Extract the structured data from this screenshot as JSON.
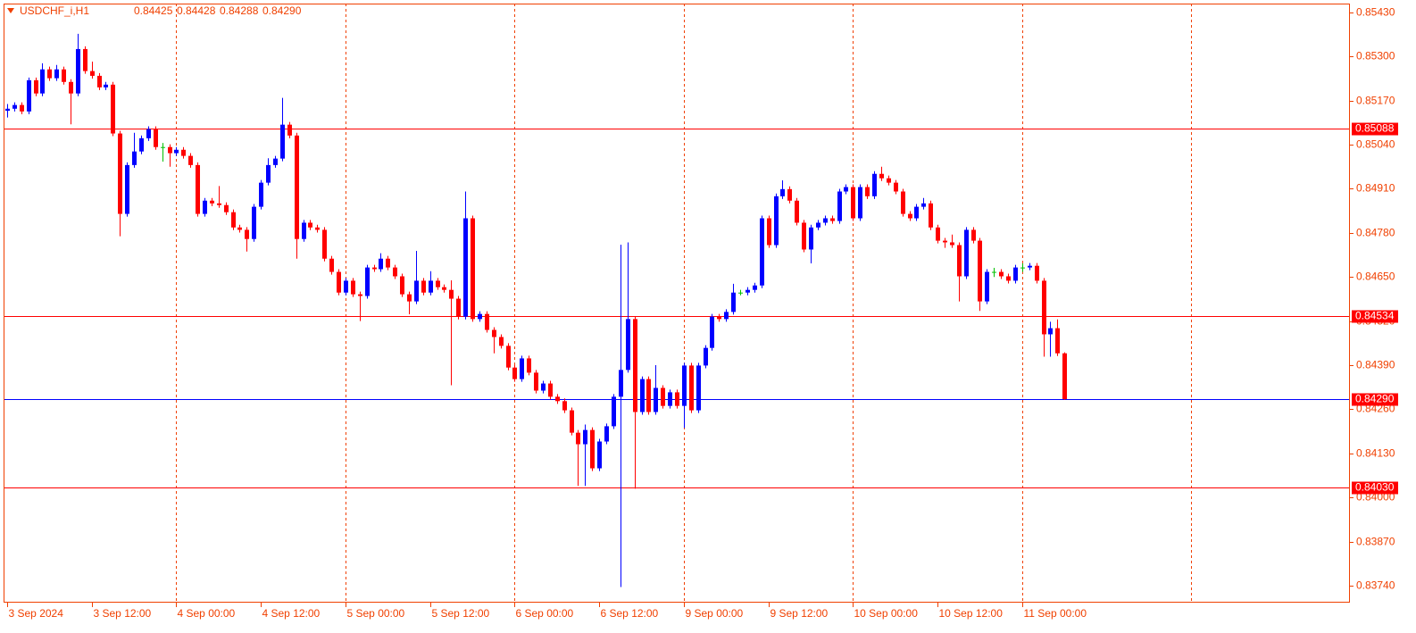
{
  "chart_data": {
    "type": "candlestick",
    "title": "USDCHF_i,H1",
    "header_values": [
      "0.84425",
      "0.84428",
      "0.84288",
      "0.84290"
    ],
    "up_color": "#0000ff",
    "down_color": "#ff0000",
    "flat_color": "#00c000",
    "axis_color": "#f04000",
    "grid_color": "#f04000",
    "ylim": [
      0.8369,
      0.85456
    ],
    "xlim": [
      -0.5,
      190.5
    ],
    "yticks": [
      {
        "value": 0.8543,
        "label": "0.85430"
      },
      {
        "value": 0.853,
        "label": "0.85300"
      },
      {
        "value": 0.8517,
        "label": "0.85170"
      },
      {
        "value": 0.8504,
        "label": "0.85040"
      },
      {
        "value": 0.8491,
        "label": "0.84910"
      },
      {
        "value": 0.8478,
        "label": "0.84780"
      },
      {
        "value": 0.8465,
        "label": "0.84650"
      },
      {
        "value": 0.8452,
        "label": "0.84520"
      },
      {
        "value": 0.8439,
        "label": "0.84390"
      },
      {
        "value": 0.8426,
        "label": "0.84260"
      },
      {
        "value": 0.8413,
        "label": "0.84130"
      },
      {
        "value": 0.84,
        "label": "0.84000"
      },
      {
        "value": 0.8387,
        "label": "0.83870"
      },
      {
        "value": 0.8374,
        "label": "0.83740"
      }
    ],
    "xticks": [
      {
        "value": 0,
        "label": "3 Sep 2024"
      },
      {
        "value": 12,
        "label": "3 Sep 12:00"
      },
      {
        "value": 24,
        "label": "4 Sep 00:00"
      },
      {
        "value": 36,
        "label": "4 Sep 12:00"
      },
      {
        "value": 48,
        "label": "5 Sep 00:00"
      },
      {
        "value": 60,
        "label": "5 Sep 12:00"
      },
      {
        "value": 72,
        "label": "6 Sep 00:00"
      },
      {
        "value": 84,
        "label": "6 Sep 12:00"
      },
      {
        "value": 96,
        "label": "9 Sep 00:00"
      },
      {
        "value": 108,
        "label": "9 Sep 12:00"
      },
      {
        "value": 120,
        "label": "10 Sep 00:00"
      },
      {
        "value": 132,
        "label": "10 Sep 12:00"
      },
      {
        "value": 144,
        "label": "11 Sep 00:00"
      }
    ],
    "xgrid": [
      24,
      48,
      72,
      96,
      120,
      144,
      168
    ],
    "levels": [
      {
        "value": 0.85088,
        "label": "0.85088",
        "color": "#ff0000"
      },
      {
        "value": 0.84534,
        "label": "0.84534",
        "color": "#ff0000"
      },
      {
        "value": 0.8429,
        "label": "0.84290",
        "color": "#0000ff"
      },
      {
        "value": 0.8403,
        "label": "0.84030",
        "color": "#ff0000"
      }
    ],
    "candles": [
      [
        0.8514,
        0.8516,
        0.8512,
        0.85146
      ],
      [
        0.85146,
        0.85165,
        0.85138,
        0.85157
      ],
      [
        0.85157,
        0.85165,
        0.8513,
        0.85138
      ],
      [
        0.85138,
        0.85238,
        0.8513,
        0.8523
      ],
      [
        0.8523,
        0.85238,
        0.85183,
        0.85191
      ],
      [
        0.85191,
        0.8528,
        0.85183,
        0.85262
      ],
      [
        0.85262,
        0.8527,
        0.85228,
        0.85236
      ],
      [
        0.85236,
        0.85275,
        0.85228,
        0.85262
      ],
      [
        0.85262,
        0.8527,
        0.85217,
        0.85225
      ],
      [
        0.85225,
        0.85233,
        0.851,
        0.85191
      ],
      [
        0.85191,
        0.85367,
        0.85183,
        0.85322
      ],
      [
        0.85322,
        0.8533,
        0.85249,
        0.85257
      ],
      [
        0.85257,
        0.85285,
        0.85235,
        0.85243
      ],
      [
        0.85243,
        0.85251,
        0.85201,
        0.85209
      ],
      [
        0.85209,
        0.85225,
        0.85201,
        0.85217
      ],
      [
        0.85217,
        0.85225,
        0.85065,
        0.85073
      ],
      [
        0.85073,
        0.85081,
        0.8477,
        0.84836
      ],
      [
        0.84836,
        0.84988,
        0.84828,
        0.8498
      ],
      [
        0.8498,
        0.85075,
        0.84972,
        0.8502
      ],
      [
        0.8502,
        0.85067,
        0.85012,
        0.85059
      ],
      [
        0.85059,
        0.85094,
        0.85051,
        0.85086
      ],
      [
        0.85086,
        0.85094,
        0.85025,
        0.85033
      ],
      [
        0.85033,
        0.85045,
        0.8499,
        0.85033
      ],
      [
        0.85033,
        0.85041,
        0.84975,
        0.85015
      ],
      [
        0.85015,
        0.85033,
        0.85007,
        0.85025
      ],
      [
        0.85025,
        0.85033,
        0.84999,
        0.85007
      ],
      [
        0.85007,
        0.85015,
        0.84972,
        0.8498
      ],
      [
        0.8498,
        0.84988,
        0.84828,
        0.84836
      ],
      [
        0.84836,
        0.84883,
        0.84828,
        0.84875
      ],
      [
        0.84875,
        0.84883,
        0.84859,
        0.84867
      ],
      [
        0.84867,
        0.84918,
        0.84854,
        0.84862
      ],
      [
        0.84862,
        0.8487,
        0.84833,
        0.84841
      ],
      [
        0.84841,
        0.84849,
        0.84788,
        0.84796
      ],
      [
        0.84796,
        0.84804,
        0.84781,
        0.84789
      ],
      [
        0.84789,
        0.84797,
        0.84725,
        0.84762
      ],
      [
        0.84762,
        0.84865,
        0.84754,
        0.84857
      ],
      [
        0.84857,
        0.84936,
        0.84849,
        0.84928
      ],
      [
        0.84928,
        0.85,
        0.8492,
        0.8498
      ],
      [
        0.8498,
        0.85007,
        0.84972,
        0.84999
      ],
      [
        0.84999,
        0.85178,
        0.84991,
        0.85099
      ],
      [
        0.85099,
        0.85107,
        0.85059,
        0.85067
      ],
      [
        0.85067,
        0.85075,
        0.84704,
        0.84762
      ],
      [
        0.84762,
        0.84818,
        0.84754,
        0.8481
      ],
      [
        0.8481,
        0.84818,
        0.84788,
        0.84796
      ],
      [
        0.84796,
        0.84804,
        0.84781,
        0.84789
      ],
      [
        0.84789,
        0.84797,
        0.84696,
        0.84704
      ],
      [
        0.84704,
        0.84712,
        0.84657,
        0.84665
      ],
      [
        0.84665,
        0.84673,
        0.84596,
        0.84604
      ],
      [
        0.84604,
        0.84647,
        0.84596,
        0.84639
      ],
      [
        0.84639,
        0.84647,
        0.84591,
        0.84599
      ],
      [
        0.84599,
        0.84607,
        0.8452,
        0.84594
      ],
      [
        0.84594,
        0.84686,
        0.84586,
        0.84678
      ],
      [
        0.84678,
        0.84686,
        0.84665,
        0.84673
      ],
      [
        0.84673,
        0.8472,
        0.84665,
        0.84704
      ],
      [
        0.84704,
        0.84712,
        0.8467,
        0.84678
      ],
      [
        0.84678,
        0.84686,
        0.84644,
        0.84652
      ],
      [
        0.84652,
        0.8466,
        0.84591,
        0.84599
      ],
      [
        0.84599,
        0.84607,
        0.8454,
        0.84578
      ],
      [
        0.84578,
        0.84727,
        0.8457,
        0.84639
      ],
      [
        0.84639,
        0.84647,
        0.84596,
        0.84604
      ],
      [
        0.84604,
        0.84667,
        0.84596,
        0.84639
      ],
      [
        0.84639,
        0.84647,
        0.84612,
        0.8462
      ],
      [
        0.8462,
        0.84628,
        0.84604,
        0.84612
      ],
      [
        0.84612,
        0.8464,
        0.84331,
        0.84586
      ],
      [
        0.84586,
        0.84594,
        0.84525,
        0.84533
      ],
      [
        0.84533,
        0.84902,
        0.84525,
        0.84823
      ],
      [
        0.84823,
        0.84831,
        0.84518,
        0.84526
      ],
      [
        0.84526,
        0.84549,
        0.84518,
        0.84541
      ],
      [
        0.84541,
        0.84549,
        0.84486,
        0.84494
      ],
      [
        0.84494,
        0.84502,
        0.84425,
        0.84473
      ],
      [
        0.84473,
        0.84481,
        0.84439,
        0.84447
      ],
      [
        0.84447,
        0.84455,
        0.84375,
        0.84383
      ],
      [
        0.84383,
        0.84391,
        0.84341,
        0.84349
      ],
      [
        0.84349,
        0.84418,
        0.84341,
        0.8441
      ],
      [
        0.8441,
        0.84418,
        0.8436,
        0.84368
      ],
      [
        0.84368,
        0.84376,
        0.84307,
        0.84315
      ],
      [
        0.84315,
        0.84344,
        0.84307,
        0.84336
      ],
      [
        0.84336,
        0.84344,
        0.84289,
        0.84297
      ],
      [
        0.84297,
        0.84305,
        0.84276,
        0.84284
      ],
      [
        0.84284,
        0.84292,
        0.84249,
        0.84257
      ],
      [
        0.84257,
        0.84265,
        0.84183,
        0.84191
      ],
      [
        0.84191,
        0.84199,
        0.84034,
        0.84157
      ],
      [
        0.84157,
        0.84215,
        0.84034,
        0.84199
      ],
      [
        0.84199,
        0.84207,
        0.84078,
        0.84086
      ],
      [
        0.84086,
        0.84173,
        0.84078,
        0.84165
      ],
      [
        0.84165,
        0.84218,
        0.84157,
        0.8421
      ],
      [
        0.8421,
        0.84305,
        0.84202,
        0.84297
      ],
      [
        0.84297,
        0.84745,
        0.83736,
        0.84376
      ],
      [
        0.84376,
        0.84752,
        0.84368,
        0.84526
      ],
      [
        0.84526,
        0.84534,
        0.84026,
        0.84252
      ],
      [
        0.84252,
        0.84357,
        0.84244,
        0.84349
      ],
      [
        0.84349,
        0.84357,
        0.84244,
        0.84252
      ],
      [
        0.84252,
        0.8439,
        0.84244,
        0.84323
      ],
      [
        0.84323,
        0.84331,
        0.84262,
        0.8427
      ],
      [
        0.8427,
        0.84318,
        0.84262,
        0.8431
      ],
      [
        0.8431,
        0.84318,
        0.84262,
        0.8427
      ],
      [
        0.8427,
        0.84397,
        0.84205,
        0.84389
      ],
      [
        0.84389,
        0.84397,
        0.84249,
        0.84257
      ],
      [
        0.84257,
        0.84397,
        0.84249,
        0.84389
      ],
      [
        0.84389,
        0.84449,
        0.84381,
        0.84441
      ],
      [
        0.84441,
        0.84541,
        0.84433,
        0.84533
      ],
      [
        0.84533,
        0.84541,
        0.84518,
        0.84526
      ],
      [
        0.84526,
        0.84555,
        0.84518,
        0.84547
      ],
      [
        0.84547,
        0.8463,
        0.84539,
        0.84604
      ],
      [
        0.84604,
        0.84612,
        0.84596,
        0.84604
      ],
      [
        0.84604,
        0.8462,
        0.84596,
        0.84612
      ],
      [
        0.84612,
        0.84633,
        0.84604,
        0.84625
      ],
      [
        0.84625,
        0.84831,
        0.84617,
        0.84823
      ],
      [
        0.84823,
        0.84831,
        0.84736,
        0.84744
      ],
      [
        0.84744,
        0.84896,
        0.84736,
        0.84888
      ],
      [
        0.84888,
        0.84935,
        0.8488,
        0.84909
      ],
      [
        0.84909,
        0.84917,
        0.84867,
        0.84875
      ],
      [
        0.84875,
        0.84883,
        0.84802,
        0.8481
      ],
      [
        0.8481,
        0.84818,
        0.84723,
        0.84731
      ],
      [
        0.84731,
        0.84804,
        0.8469,
        0.84796
      ],
      [
        0.84796,
        0.84818,
        0.84788,
        0.8481
      ],
      [
        0.8481,
        0.84831,
        0.84802,
        0.84823
      ],
      [
        0.84823,
        0.84831,
        0.84807,
        0.84815
      ],
      [
        0.84815,
        0.8491,
        0.84807,
        0.84902
      ],
      [
        0.84902,
        0.84923,
        0.84894,
        0.84915
      ],
      [
        0.84915,
        0.84923,
        0.84815,
        0.84823
      ],
      [
        0.84823,
        0.84923,
        0.84815,
        0.84915
      ],
      [
        0.84915,
        0.84923,
        0.8488,
        0.84888
      ],
      [
        0.84888,
        0.84962,
        0.8488,
        0.84954
      ],
      [
        0.84954,
        0.84975,
        0.84933,
        0.84941
      ],
      [
        0.84941,
        0.84949,
        0.8492,
        0.84928
      ],
      [
        0.84928,
        0.84936,
        0.84894,
        0.84902
      ],
      [
        0.84902,
        0.8491,
        0.84828,
        0.84836
      ],
      [
        0.84836,
        0.84844,
        0.84815,
        0.84823
      ],
      [
        0.84823,
        0.84865,
        0.84815,
        0.84857
      ],
      [
        0.84857,
        0.84883,
        0.84849,
        0.84867
      ],
      [
        0.84867,
        0.84875,
        0.84788,
        0.84796
      ],
      [
        0.84796,
        0.84804,
        0.84749,
        0.84757
      ],
      [
        0.84757,
        0.84765,
        0.84736,
        0.84752
      ],
      [
        0.84752,
        0.84775,
        0.84736,
        0.84744
      ],
      [
        0.84744,
        0.84752,
        0.84578,
        0.84652
      ],
      [
        0.84652,
        0.84797,
        0.84644,
        0.84789
      ],
      [
        0.84789,
        0.84797,
        0.84749,
        0.84757
      ],
      [
        0.84757,
        0.84765,
        0.8455,
        0.84578
      ],
      [
        0.84578,
        0.84673,
        0.8457,
        0.84665
      ],
      [
        0.84665,
        0.84677,
        0.8465,
        0.84665
      ],
      [
        0.84665,
        0.84673,
        0.84644,
        0.84652
      ],
      [
        0.84652,
        0.8466,
        0.84631,
        0.84639
      ],
      [
        0.84639,
        0.84686,
        0.84631,
        0.84678
      ],
      [
        0.84678,
        0.8469,
        0.84665,
        0.84678
      ],
      [
        0.84678,
        0.84691,
        0.8467,
        0.84683
      ],
      [
        0.84683,
        0.84691,
        0.84631,
        0.84639
      ],
      [
        0.84639,
        0.84647,
        0.84415,
        0.84481
      ],
      [
        0.84481,
        0.84518,
        0.84415,
        0.84499
      ],
      [
        0.84499,
        0.84525,
        0.84417,
        0.84425
      ],
      [
        0.84425,
        0.84428,
        0.84288,
        0.8429
      ]
    ]
  }
}
